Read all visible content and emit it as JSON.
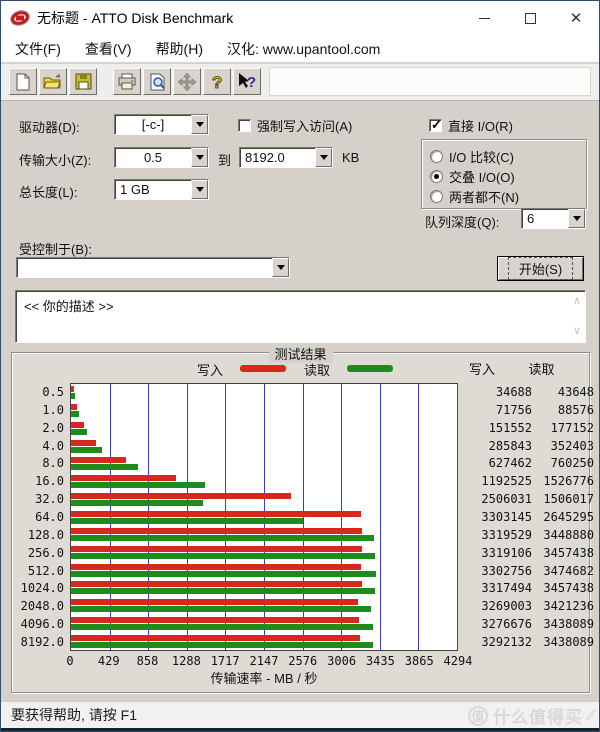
{
  "window": {
    "title": "无标题 - ATTO Disk Benchmark",
    "controls": [
      "minimize",
      "maximize",
      "close"
    ]
  },
  "menu": {
    "items": [
      "文件(F)",
      "查看(V)",
      "帮助(H)",
      "汉化: www.upantool.com"
    ]
  },
  "toolbar": {
    "icons": [
      "new-file-icon",
      "open-file-icon",
      "save-file-icon",
      "print-icon",
      "print-preview-icon",
      "move-icon",
      "help-icon",
      "context-help-icon"
    ]
  },
  "form": {
    "drive_label": "驱动器(D):",
    "drive_value": "[-c-]",
    "force_write_label": "强制写入访问(A)",
    "force_write_checked": false,
    "direct_io_label": "直接 I/O(R)",
    "direct_io_checked": true,
    "transfer_size_label": "传输大小(Z):",
    "transfer_size_from": "0.5",
    "to_label": "到",
    "transfer_size_to": "8192.0",
    "unit_label": "KB",
    "io_options": [
      {
        "label": "I/O 比较(C)",
        "selected": false
      },
      {
        "label": "交叠 I/O(O)",
        "selected": true
      },
      {
        "label": "两者都不(N)",
        "selected": false
      }
    ],
    "total_length_label": "总长度(L):",
    "total_length_value": "1 GB",
    "queue_depth_label": "队列深度(Q):",
    "queue_depth_value": "6",
    "controlled_by_label": "受控制于(B):",
    "controlled_by_value": "",
    "start_button": "开始(S)",
    "description_text": "<<  你的描述  >>"
  },
  "results": {
    "group_title": "测试结果",
    "legend": {
      "write_label": "写入",
      "read_label": "读取"
    },
    "col_headers": {
      "write": "写入",
      "read": "读取"
    }
  },
  "chart_data": {
    "type": "bar",
    "orientation": "horizontal",
    "categories": [
      "0.5",
      "1.0",
      "2.0",
      "4.0",
      "8.0",
      "16.0",
      "32.0",
      "64.0",
      "128.0",
      "256.0",
      "512.0",
      "1024.0",
      "2048.0",
      "4096.0",
      "8192.0"
    ],
    "series": [
      {
        "name": "写入",
        "color": "#d7281d",
        "values": [
          34688,
          71756,
          151552,
          285843,
          627462,
          1192525,
          2506031,
          3303145,
          3319529,
          3319106,
          3302756,
          3317494,
          3269003,
          3276676,
          3292132
        ]
      },
      {
        "name": "读取",
        "color": "#1e8b1e",
        "values": [
          43648,
          88576,
          177152,
          352403,
          760250,
          1526776,
          1506017,
          2645295,
          3448880,
          3457438,
          3474682,
          3457438,
          3421236,
          3438089,
          3438089
        ]
      }
    ],
    "values_unit": "KB/s",
    "xlabel": "传输速率 - MB / 秒",
    "x_ticks": [
      0,
      429,
      858,
      1288,
      1717,
      2147,
      2576,
      3006,
      3435,
      3865,
      4294
    ],
    "xlim": [
      0,
      4294
    ],
    "grid": "vertical",
    "legend_position": "top"
  },
  "statusbar": {
    "text": "要获得帮助, 请按 F1"
  },
  "watermark": {
    "badge": "值",
    "text": "什么值得买"
  },
  "colors": {
    "write": "#d7281d",
    "read": "#1e8b1e",
    "gridline": "#3a3ac8",
    "window_bg": "#d5d1ca",
    "titlebar_bg": "#ffffff"
  }
}
